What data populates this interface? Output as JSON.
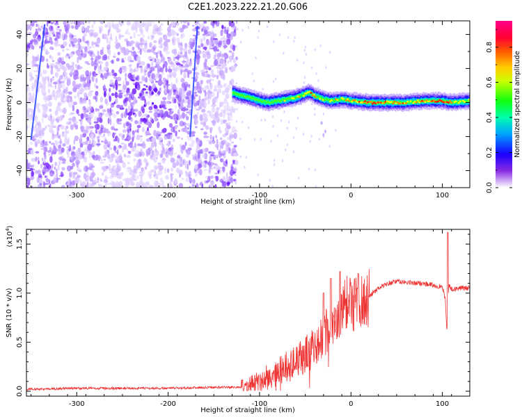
{
  "title": "C2E1.2023.222.21.20.G06",
  "chart_data": [
    {
      "type": "heatmap",
      "name": "spectrogram",
      "xlabel": "Height of straight line (km)",
      "ylabel": "Frequency (Hz)",
      "xlim": [
        -355,
        130
      ],
      "ylim": [
        -50,
        48
      ],
      "x_ticks": [
        -300,
        -200,
        -100,
        0,
        100
      ],
      "x_tick_labels": [
        "-300",
        "-200",
        "-100",
        "0",
        "100"
      ],
      "y_ticks": [
        -40,
        -20,
        0,
        20,
        40
      ],
      "y_tick_labels": [
        "-40",
        "-20",
        "0",
        "20",
        "40"
      ],
      "signal_trace": {
        "x": [
          -130,
          -120,
          -110,
          -100,
          -90,
          -80,
          -70,
          -60,
          -50,
          -45,
          -40,
          -35,
          -30,
          -20,
          -10,
          0,
          20,
          40,
          60,
          80,
          100,
          110,
          130
        ],
        "freq": [
          6,
          4,
          3,
          1,
          0,
          1,
          2,
          3,
          5,
          6,
          4,
          3,
          2,
          1,
          2,
          1,
          0,
          0,
          0,
          1,
          1,
          0,
          1
        ],
        "amplitude": [
          0.45,
          0.4,
          0.45,
          0.4,
          0.45,
          0.5,
          0.55,
          0.6,
          0.7,
          0.75,
          0.7,
          0.6,
          0.55,
          0.6,
          0.65,
          0.7,
          0.75,
          0.75,
          0.7,
          0.7,
          0.85,
          0.7,
          0.6
        ]
      },
      "noise_region_x": [
        -355,
        -125
      ]
    },
    {
      "type": "colorbar",
      "label": "Normalized spectral amplitude",
      "range": [
        0,
        0.95
      ],
      "ticks": [
        0.0,
        0.2,
        0.4,
        0.6,
        0.8
      ],
      "tick_labels": [
        "0.0",
        "0.2",
        "0.4",
        "0.6",
        "0.8"
      ],
      "colormap": [
        "#ffffff",
        "#6a00ff",
        "#0000ff",
        "#00bfff",
        "#00ff7f",
        "#33ff00",
        "#ffff00",
        "#ff9900",
        "#ff0000",
        "#ff00aa"
      ]
    },
    {
      "type": "line",
      "name": "snr",
      "xlabel": "Height of straight line (km)",
      "ylabel": "SNR (10 * v/v)",
      "scale_note": "(x10",
      "scale_exp": "4",
      "scale_close": ")",
      "xlim": [
        -355,
        130
      ],
      "ylim": [
        -0.05,
        1.65
      ],
      "x_ticks": [
        -300,
        -200,
        -100,
        0,
        100
      ],
      "x_tick_labels": [
        "-300",
        "-200",
        "-100",
        "0",
        "100"
      ],
      "y_ticks": [
        0.0,
        0.5,
        1.0,
        1.5
      ],
      "y_tick_labels": [
        "0.0",
        "0.5",
        "1.0",
        "1.5"
      ],
      "x": [
        -355,
        -300,
        -250,
        -200,
        -150,
        -120,
        -110,
        -100,
        -80,
        -60,
        -40,
        -30,
        -20,
        -10,
        -5,
        0,
        10,
        20,
        30,
        40,
        50,
        60,
        70,
        80,
        90,
        100,
        103,
        105,
        107,
        110,
        120,
        130
      ],
      "y": [
        0.02,
        0.03,
        0.03,
        0.03,
        0.04,
        0.04,
        0.06,
        0.1,
        0.2,
        0.3,
        0.45,
        0.55,
        0.7,
        0.8,
        0.9,
        0.85,
        0.9,
        0.97,
        1.05,
        1.1,
        1.12,
        1.11,
        1.1,
        1.1,
        1.08,
        1.06,
        0.95,
        0.6,
        1.08,
        1.04,
        1.05,
        1.05
      ],
      "spikes": [
        {
          "x": -30,
          "y": 1.0
        },
        {
          "x": -22,
          "y": 1.15
        },
        {
          "x": -12,
          "y": 1.22
        },
        {
          "x": 8,
          "y": 1.2
        },
        {
          "x": 106,
          "y": 1.62
        }
      ],
      "line_color": "#ee3333"
    }
  ]
}
